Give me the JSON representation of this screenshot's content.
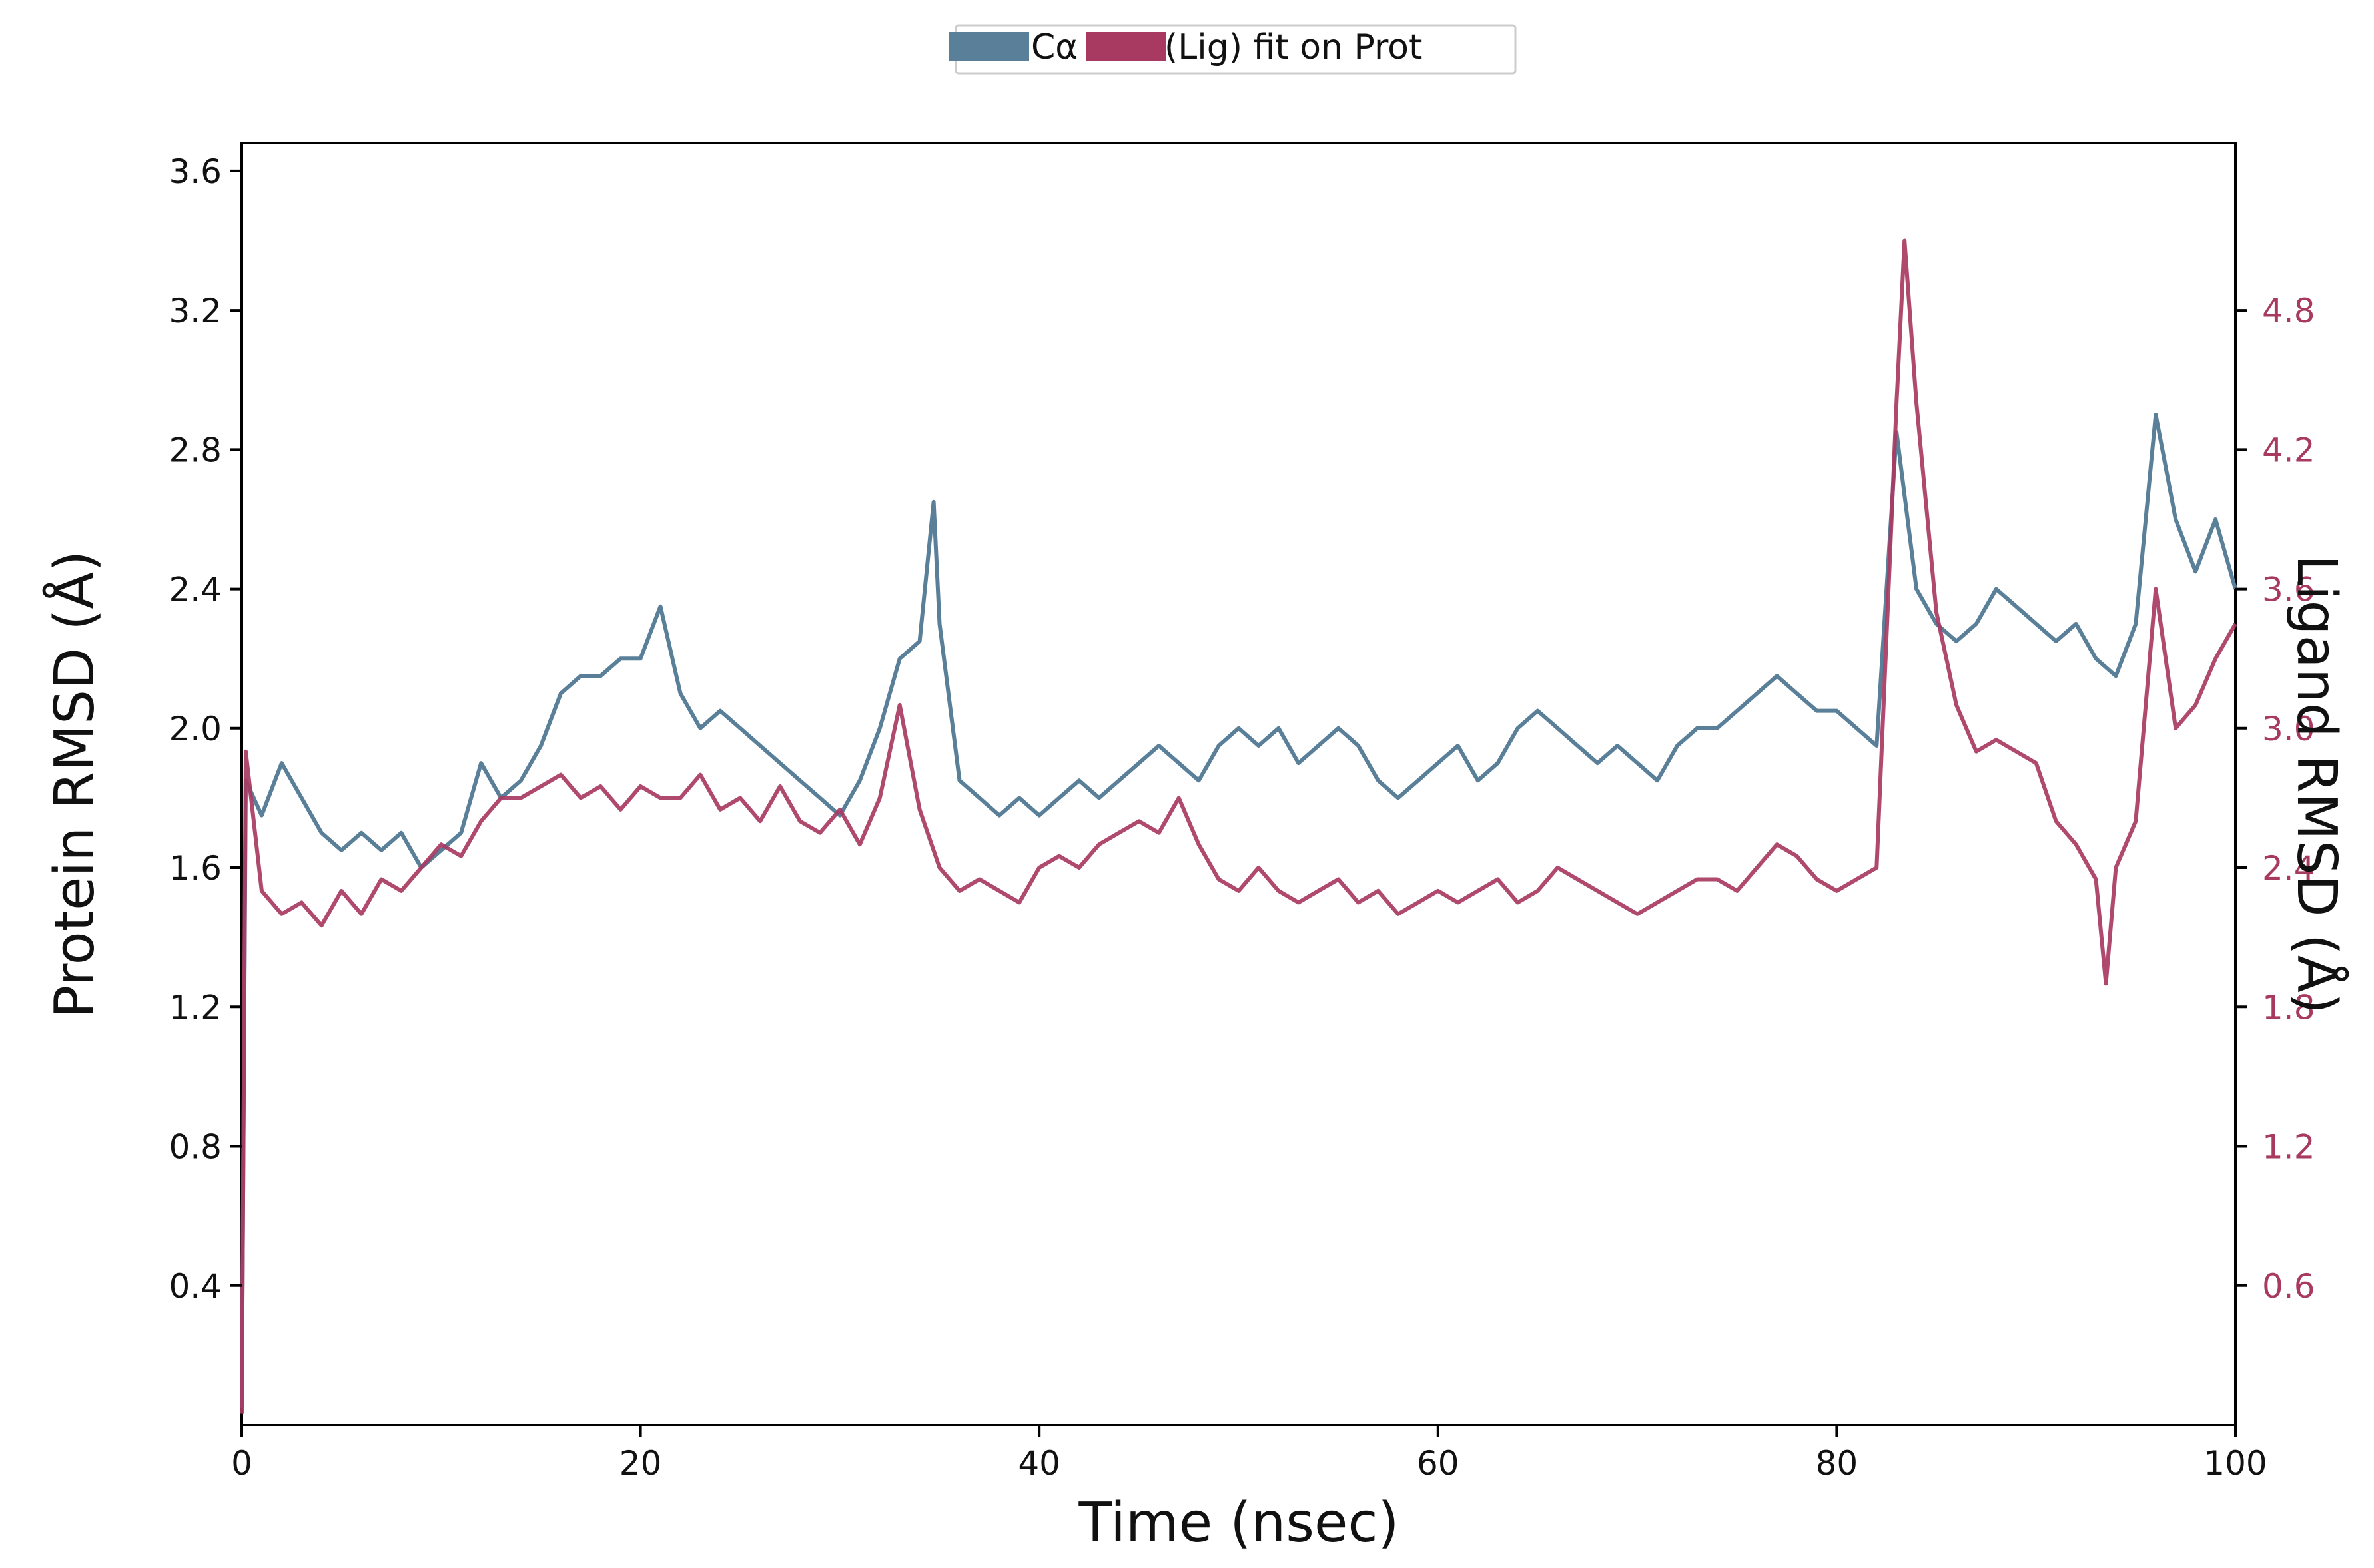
{
  "chart_data": {
    "type": "line",
    "xlabel": "Time (nsec)",
    "ylabel_left": "Protein RMSD (Å)",
    "ylabel_right": "Ligand RMSD (Å)",
    "xlim": [
      0,
      100
    ],
    "ylim_left": [
      0.0,
      3.68
    ],
    "ylim_right": [
      0.0,
      5.52
    ],
    "x_ticks": [
      "0",
      "20",
      "40",
      "60",
      "80",
      "100"
    ],
    "y_ticks_left": [
      "0.4",
      "0.8",
      "1.2",
      "1.6",
      "2.0",
      "2.4",
      "2.8",
      "3.2",
      "3.6"
    ],
    "y_ticks_right": [
      "0.6",
      "1.2",
      "1.8",
      "2.4",
      "3.0",
      "3.6",
      "4.2",
      "4.8"
    ],
    "grid": false,
    "legend_position": "top-center",
    "legend": [
      "Cα",
      "(Lig) fit on Prot"
    ],
    "colors": {
      "protein": "#5a7f98",
      "ligand": "#a83a62",
      "right_axis": "#a83a62"
    },
    "series": [
      {
        "name": "Cα",
        "axis": "left",
        "x": [
          0,
          0.2,
          1,
          2,
          3,
          4,
          5,
          6,
          7,
          8,
          9,
          10,
          11,
          12,
          13,
          14,
          15,
          16,
          17,
          18,
          19,
          20,
          21,
          22,
          23,
          24,
          25,
          26,
          27,
          28,
          29,
          30,
          31,
          32,
          33,
          34,
          34.7,
          35,
          36,
          37,
          38,
          39,
          40,
          41,
          42,
          43,
          44,
          45,
          46,
          47,
          48,
          49,
          50,
          51,
          52,
          53,
          54,
          55,
          56,
          57,
          58,
          59,
          60,
          61,
          62,
          63,
          64,
          65,
          66,
          67,
          68,
          69,
          70,
          71,
          72,
          73,
          74,
          75,
          76,
          77,
          78,
          79,
          80,
          81,
          82,
          83,
          84,
          85,
          86,
          87,
          88,
          89,
          90,
          91,
          92,
          93,
          94,
          95,
          96,
          97,
          98,
          99,
          100
        ],
        "y": [
          0.05,
          1.85,
          1.75,
          1.9,
          1.8,
          1.7,
          1.65,
          1.7,
          1.65,
          1.7,
          1.6,
          1.65,
          1.7,
          1.9,
          1.8,
          1.85,
          1.95,
          2.1,
          2.15,
          2.15,
          2.2,
          2.2,
          2.35,
          2.1,
          2.0,
          2.05,
          2.0,
          1.95,
          1.9,
          1.85,
          1.8,
          1.75,
          1.85,
          2.0,
          2.2,
          2.25,
          2.65,
          2.3,
          1.85,
          1.8,
          1.75,
          1.8,
          1.75,
          1.8,
          1.85,
          1.8,
          1.85,
          1.9,
          1.95,
          1.9,
          1.85,
          1.95,
          2.0,
          1.95,
          2.0,
          1.9,
          1.95,
          2.0,
          1.95,
          1.85,
          1.8,
          1.85,
          1.9,
          1.95,
          1.85,
          1.9,
          2.0,
          2.05,
          2.0,
          1.95,
          1.9,
          1.95,
          1.9,
          1.85,
          1.95,
          2.0,
          2.0,
          2.05,
          2.1,
          2.15,
          2.1,
          2.05,
          2.05,
          2.0,
          1.95,
          2.85,
          2.4,
          2.3,
          2.25,
          2.3,
          2.4,
          2.35,
          2.3,
          2.25,
          2.3,
          2.2,
          2.15,
          2.3,
          2.9,
          2.6,
          2.45,
          2.6,
          2.4
        ]
      },
      {
        "name": "(Lig) fit on Prot",
        "axis": "right",
        "x": [
          0,
          0.2,
          1,
          2,
          3,
          4,
          5,
          6,
          7,
          8,
          9,
          10,
          11,
          12,
          13,
          14,
          15,
          16,
          17,
          18,
          19,
          20,
          21,
          22,
          23,
          24,
          25,
          26,
          27,
          28,
          29,
          30,
          31,
          32,
          33,
          34,
          35,
          36,
          37,
          38,
          39,
          40,
          41,
          42,
          43,
          44,
          45,
          46,
          47,
          48,
          49,
          50,
          51,
          52,
          53,
          54,
          55,
          56,
          57,
          58,
          59,
          60,
          61,
          62,
          63,
          64,
          65,
          66,
          67,
          68,
          69,
          70,
          71,
          72,
          73,
          74,
          75,
          76,
          77,
          78,
          79,
          80,
          81,
          82,
          83,
          83.4,
          84,
          85,
          86,
          87,
          88,
          89,
          90,
          91,
          92,
          93,
          93.5,
          94,
          95,
          96,
          97,
          98,
          99,
          100
        ],
        "y": [
          0.05,
          2.9,
          2.3,
          2.2,
          2.25,
          2.15,
          2.3,
          2.2,
          2.35,
          2.3,
          2.4,
          2.5,
          2.45,
          2.6,
          2.7,
          2.7,
          2.75,
          2.8,
          2.7,
          2.75,
          2.65,
          2.75,
          2.7,
          2.7,
          2.8,
          2.65,
          2.7,
          2.6,
          2.75,
          2.6,
          2.55,
          2.65,
          2.5,
          2.7,
          3.1,
          2.65,
          2.4,
          2.3,
          2.35,
          2.3,
          2.25,
          2.4,
          2.45,
          2.4,
          2.5,
          2.55,
          2.6,
          2.55,
          2.7,
          2.5,
          2.35,
          2.3,
          2.4,
          2.3,
          2.25,
          2.3,
          2.35,
          2.25,
          2.3,
          2.2,
          2.25,
          2.3,
          2.25,
          2.3,
          2.35,
          2.25,
          2.3,
          2.4,
          2.35,
          2.3,
          2.25,
          2.2,
          2.25,
          2.3,
          2.35,
          2.35,
          2.3,
          2.4,
          2.5,
          2.45,
          2.35,
          2.3,
          2.35,
          2.4,
          4.4,
          5.1,
          4.4,
          3.5,
          3.1,
          2.9,
          2.95,
          2.9,
          2.85,
          2.6,
          2.5,
          2.35,
          1.9,
          2.4,
          2.6,
          3.6,
          3.0,
          3.1,
          3.3,
          3.45
        ]
      }
    ]
  }
}
